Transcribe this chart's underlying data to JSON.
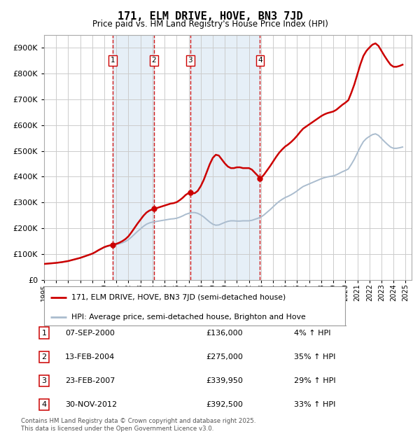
{
  "title": "171, ELM DRIVE, HOVE, BN3 7JD",
  "subtitle": "Price paid vs. HM Land Registry's House Price Index (HPI)",
  "ytick_vals": [
    0,
    100000,
    200000,
    300000,
    400000,
    500000,
    600000,
    700000,
    800000,
    900000
  ],
  "ylim": [
    0,
    950000
  ],
  "xlim_start": 1995.0,
  "xlim_end": 2025.5,
  "background_color": "#ffffff",
  "plot_bg_color": "#ffffff",
  "grid_color": "#cccccc",
  "sale_color": "#cc0000",
  "hpi_color": "#aabcce",
  "legend_sale_label": "171, ELM DRIVE, HOVE, BN3 7JD (semi-detached house)",
  "legend_hpi_label": "HPI: Average price, semi-detached house, Brighton and Hove",
  "transactions": [
    {
      "num": 1,
      "date_label": "07-SEP-2000",
      "price": 136000,
      "pct": "4%",
      "x": 2000.69
    },
    {
      "num": 2,
      "date_label": "13-FEB-2004",
      "price": 275000,
      "pct": "35%",
      "x": 2004.12
    },
    {
      "num": 3,
      "date_label": "23-FEB-2007",
      "price": 339950,
      "pct": "29%",
      "x": 2007.14
    },
    {
      "num": 4,
      "date_label": "30-NOV-2012",
      "price": 392500,
      "pct": "33%",
      "x": 2012.92
    }
  ],
  "footer_line1": "Contains HM Land Registry data © Crown copyright and database right 2025.",
  "footer_line2": "This data is licensed under the Open Government Licence v3.0.",
  "hpi_data_x": [
    1995.0,
    1995.25,
    1995.5,
    1995.75,
    1996.0,
    1996.25,
    1996.5,
    1996.75,
    1997.0,
    1997.25,
    1997.5,
    1997.75,
    1998.0,
    1998.25,
    1998.5,
    1998.75,
    1999.0,
    1999.25,
    1999.5,
    1999.75,
    2000.0,
    2000.25,
    2000.5,
    2000.75,
    2001.0,
    2001.25,
    2001.5,
    2001.75,
    2002.0,
    2002.25,
    2002.5,
    2002.75,
    2003.0,
    2003.25,
    2003.5,
    2003.75,
    2004.0,
    2004.25,
    2004.5,
    2004.75,
    2005.0,
    2005.25,
    2005.5,
    2005.75,
    2006.0,
    2006.25,
    2006.5,
    2006.75,
    2007.0,
    2007.25,
    2007.5,
    2007.75,
    2008.0,
    2008.25,
    2008.5,
    2008.75,
    2009.0,
    2009.25,
    2009.5,
    2009.75,
    2010.0,
    2010.25,
    2010.5,
    2010.75,
    2011.0,
    2011.25,
    2011.5,
    2011.75,
    2012.0,
    2012.25,
    2012.5,
    2012.75,
    2013.0,
    2013.25,
    2013.5,
    2013.75,
    2014.0,
    2014.25,
    2014.5,
    2014.75,
    2015.0,
    2015.25,
    2015.5,
    2015.75,
    2016.0,
    2016.25,
    2016.5,
    2016.75,
    2017.0,
    2017.25,
    2017.5,
    2017.75,
    2018.0,
    2018.25,
    2018.5,
    2018.75,
    2019.0,
    2019.25,
    2019.5,
    2019.75,
    2020.0,
    2020.25,
    2020.5,
    2020.75,
    2021.0,
    2021.25,
    2021.5,
    2021.75,
    2022.0,
    2022.25,
    2022.5,
    2022.75,
    2023.0,
    2023.25,
    2023.5,
    2023.75,
    2024.0,
    2024.25,
    2024.5,
    2024.75
  ],
  "hpi_data_y": [
    62000,
    63000,
    64000,
    65000,
    66000,
    67500,
    69000,
    71000,
    73000,
    76000,
    79000,
    82000,
    85000,
    89000,
    93000,
    97000,
    101000,
    107000,
    114000,
    120000,
    126000,
    130000,
    133000,
    135000,
    137000,
    140000,
    144000,
    149000,
    156000,
    166000,
    177000,
    188000,
    198000,
    208000,
    216000,
    221000,
    224000,
    226000,
    228000,
    230000,
    232000,
    234000,
    236000,
    237000,
    239000,
    243000,
    248000,
    254000,
    258000,
    261000,
    261000,
    258000,
    252000,
    244000,
    234000,
    224000,
    216000,
    212000,
    213000,
    218000,
    223000,
    227000,
    229000,
    229000,
    228000,
    228000,
    229000,
    229000,
    229000,
    231000,
    235000,
    239000,
    244000,
    252000,
    262000,
    272000,
    283000,
    294000,
    304000,
    312000,
    319000,
    324000,
    330000,
    337000,
    345000,
    354000,
    362000,
    367000,
    372000,
    377000,
    382000,
    387000,
    392000,
    396000,
    399000,
    401000,
    403000,
    407000,
    413000,
    419000,
    424000,
    430000,
    448000,
    468000,
    492000,
    516000,
    536000,
    548000,
    556000,
    563000,
    566000,
    560000,
    548000,
    536000,
    525000,
    515000,
    510000,
    510000,
    512000,
    515000
  ]
}
